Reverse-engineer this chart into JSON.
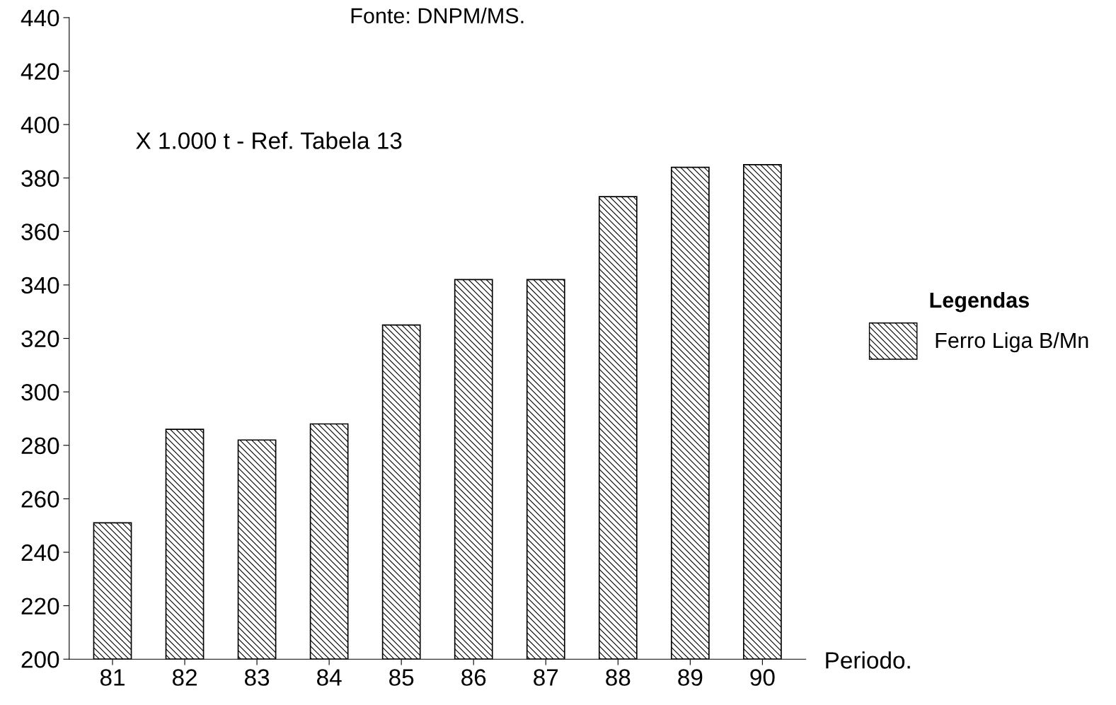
{
  "chart_data": {
    "type": "bar",
    "categories": [
      "81",
      "82",
      "83",
      "84",
      "85",
      "86",
      "87",
      "88",
      "89",
      "90"
    ],
    "series": [
      {
        "name": "Ferro Liga B/Mn",
        "color": "#000000",
        "values": [
          251,
          286,
          282,
          288,
          325,
          342,
          342,
          373,
          384,
          385
        ]
      }
    ],
    "xlabel": "Periodo.",
    "legend_title": "Legendas",
    "annotations": [
      "Fonte: DNPM/MS.",
      "X 1.000 t - Ref. Tabela 13"
    ],
    "ylim": [
      200,
      440
    ],
    "yticks": [
      200,
      220,
      240,
      260,
      280,
      300,
      320,
      340,
      360,
      380,
      400,
      420,
      440
    ],
    "grid": false,
    "legend": "right"
  }
}
